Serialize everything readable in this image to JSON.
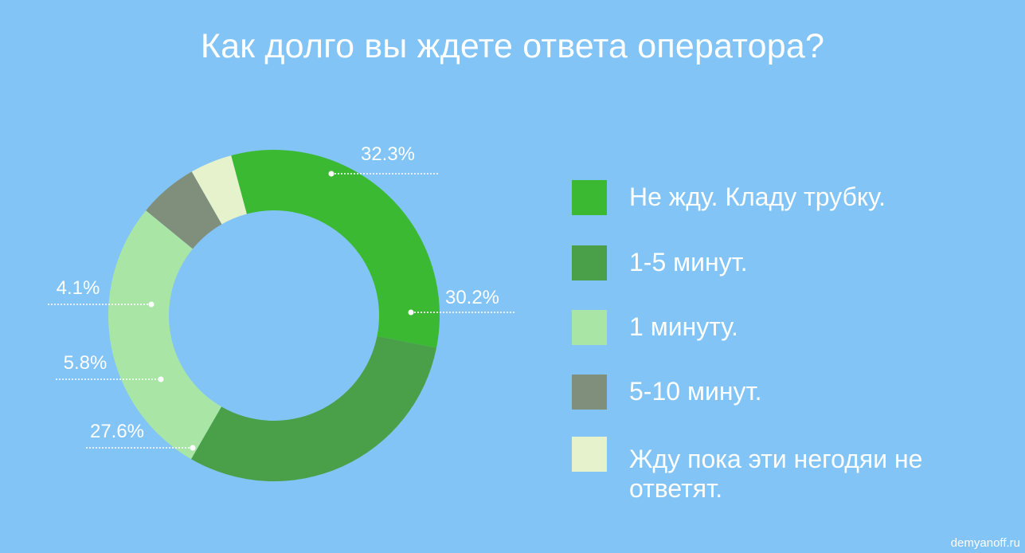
{
  "title": "Как долго вы ждете ответа оператора?",
  "watermark": "demyanoff.ru",
  "chart_data": {
    "type": "pie",
    "donut": true,
    "legend_position": "right",
    "categories": [
      "Не жду. Кладу трубку.",
      "1-5 минут.",
      "1 минуту.",
      "5-10 минут.",
      "Жду пока эти негодяи не ответят."
    ],
    "values": [
      32.3,
      30.2,
      27.6,
      5.8,
      4.1
    ],
    "value_labels": [
      "32.3%",
      "30.2%",
      "27.6%",
      "5.8%",
      "4.1%"
    ],
    "colors": [
      "#3cb933",
      "#4aa048",
      "#a9e6a6",
      "#7f8f7c",
      "#e6f2cc"
    ],
    "start_angle_deg": -15
  }
}
